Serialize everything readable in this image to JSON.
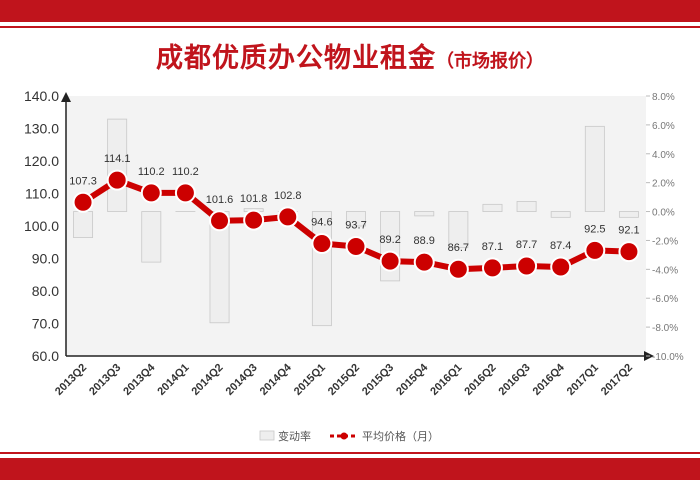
{
  "chart_data": {
    "type": "bar+line",
    "title": "成都优质办公物业租金",
    "subtitle": "（市场报价）",
    "categories": [
      "2013Q2",
      "2013Q3",
      "2013Q4",
      "2014Q1",
      "2014Q2",
      "2014Q3",
      "2014Q4",
      "2015Q1",
      "2015Q2",
      "2015Q3",
      "2015Q4",
      "2016Q1",
      "2016Q2",
      "2016Q3",
      "2016Q4",
      "2017Q1",
      "2017Q2"
    ],
    "series": [
      {
        "name": "变动率",
        "type": "bar",
        "axis": "right",
        "values": [
          -1.8,
          6.4,
          -3.5,
          0.0,
          -7.7,
          0.2,
          0.0,
          -7.9,
          -1.0,
          -4.8,
          -0.3,
          -2.5,
          0.5,
          0.7,
          -0.4,
          5.9,
          -0.4
        ],
        "color": "#eeeeee"
      },
      {
        "name": "平均价格（月）",
        "type": "line",
        "axis": "left",
        "values": [
          107.3,
          114.1,
          110.2,
          110.2,
          101.6,
          101.8,
          102.8,
          94.6,
          93.7,
          89.2,
          88.9,
          86.7,
          87.1,
          87.7,
          87.4,
          92.5,
          92.1
        ],
        "color": "#cc0000"
      }
    ],
    "y_left": {
      "range": [
        60,
        140
      ],
      "ticks": [
        "60.0",
        "70.0",
        "80.0",
        "90.0",
        "100.0",
        "110.0",
        "120.0",
        "130.0",
        "140.0"
      ]
    },
    "y_right": {
      "range": [
        -10,
        8
      ],
      "ticks": [
        "-10.0%",
        "-8.0%",
        "-6.0%",
        "-4.0%",
        "-2.0%",
        "0.0%",
        "2.0%",
        "4.0%",
        "6.0%",
        "8.0%"
      ]
    },
    "legend": {
      "position": "bottom",
      "items": [
        "变动率",
        "平均价格（月）"
      ]
    }
  },
  "colors": {
    "brand": "#c0141c",
    "line": "#cc0000",
    "bar_fill": "#eeeeee",
    "plot_bg": "#f3f3f3"
  }
}
